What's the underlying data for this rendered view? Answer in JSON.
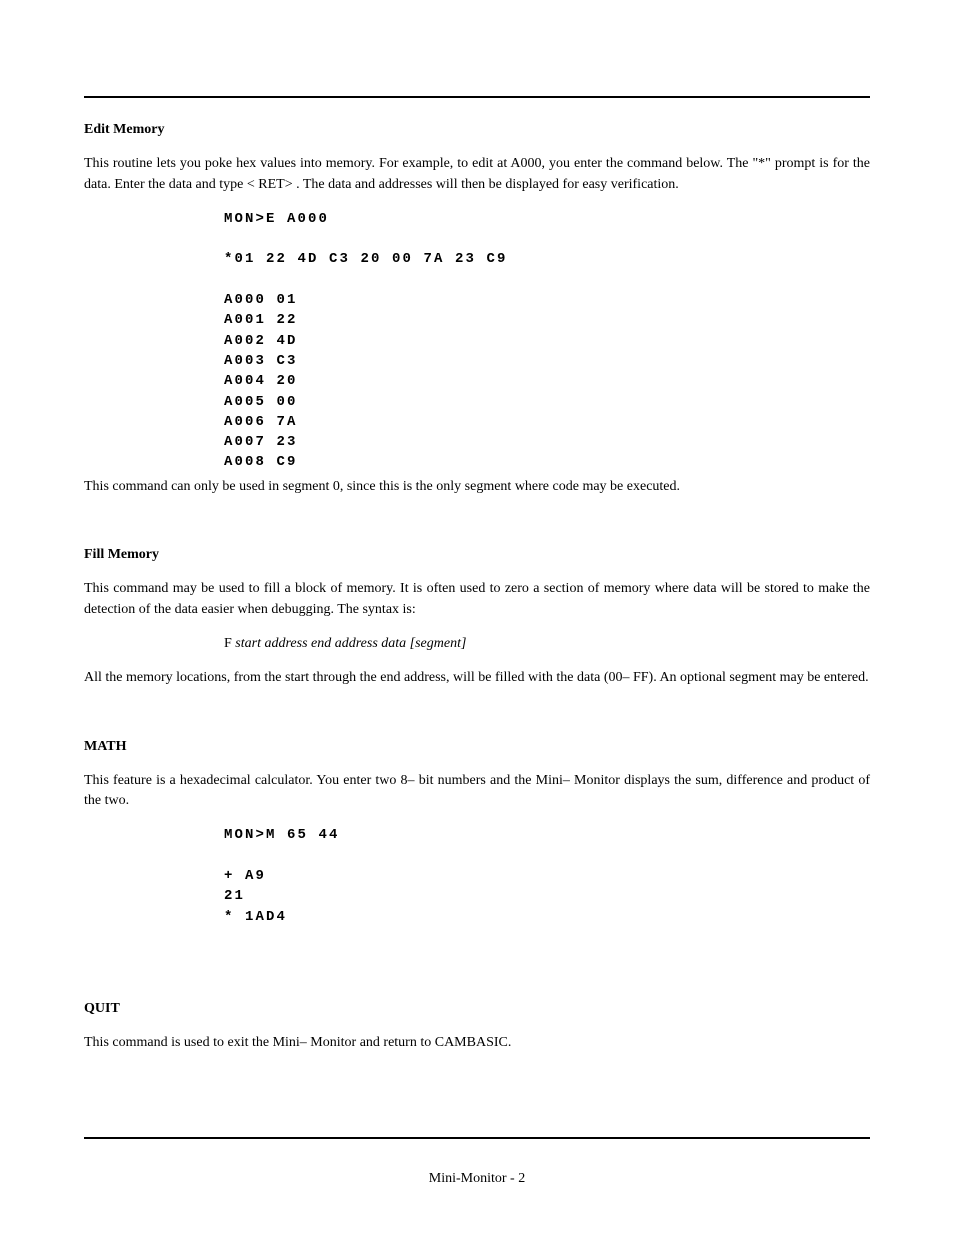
{
  "page": {
    "footer": "Mini-Monitor - 2"
  },
  "edit_memory": {
    "heading": "Edit Memory",
    "para1": "This routine lets you poke hex values into memory.  For example,  to edit at A000, you enter the command below.  The \"*\" prompt is for the data.  Enter the data and type < RET>  .  The data and addresses will then be displayed for easy verification.",
    "code": "MON>E A000\n\n*01 22 4D C3 20 00 7A 23 C9\n\nA000 01\nA001 22\nA002 4D\nA003 C3\nA004 20\nA005 00\nA006 7A\nA007 23\nA008 C9",
    "para2": "This command can only be used in segment 0,  since this is the only segment where code may be executed."
  },
  "fill_memory": {
    "heading": "Fill Memory",
    "para1": "This command may be used to fill a block of memory.  It is often used to zero a section of memory where data will be stored to make the detection of the data easier when debugging.  The syntax is:",
    "syntax_cmd": "F  ",
    "syntax_args": "start address  end address  data  [segment]",
    "para2": "All the memory locations, from the start through the end address, will be filled with the data (00– FF).  An optional segment may be entered."
  },
  "math": {
    "heading": "MATH",
    "para1": "This feature is a hexadecimal calculator.  You enter two 8– bit numbers and the Mini– Monitor displays the sum, difference and product of the two.",
    "code": "MON>M 65 44\n\n+ A9\n21\n* 1AD4"
  },
  "quit": {
    "heading": "QUIT",
    "para1": "This command is used to exit the Mini– Monitor and return to CAMBASIC."
  }
}
